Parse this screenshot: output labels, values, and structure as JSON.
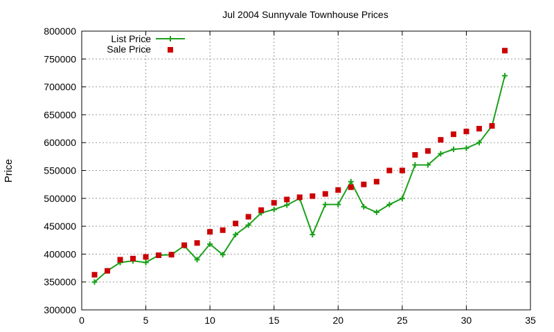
{
  "chart_data": {
    "type": "line",
    "title": "Jul 2004 Sunnyvale Townhouse Prices",
    "xlabel": "",
    "ylabel": "Price",
    "xlim": [
      0,
      35
    ],
    "ylim": [
      300000,
      800000
    ],
    "x_ticks": [
      0,
      5,
      10,
      15,
      20,
      25,
      30,
      35
    ],
    "y_ticks": [
      300000,
      350000,
      400000,
      450000,
      500000,
      550000,
      600000,
      650000,
      700000,
      750000,
      800000
    ],
    "grid": true,
    "legend_position": "top-left",
    "x": [
      1,
      2,
      3,
      4,
      5,
      6,
      7,
      8,
      9,
      10,
      11,
      12,
      13,
      14,
      15,
      16,
      17,
      18,
      19,
      20,
      21,
      22,
      23,
      24,
      25,
      26,
      27,
      28,
      29,
      30,
      31,
      32,
      33
    ],
    "series": [
      {
        "name": "List Price",
        "style": "linespoints",
        "marker": "plus",
        "color": "#1aa01a",
        "values": [
          350000,
          370000,
          385000,
          388000,
          385000,
          398000,
          399000,
          415000,
          390000,
          418000,
          399000,
          435000,
          452000,
          474000,
          480000,
          488000,
          500000,
          435000,
          489000,
          489000,
          530000,
          485000,
          475000,
          489000,
          500000,
          560000,
          560000,
          580000,
          588000,
          590000,
          600000,
          630000,
          720000
        ]
      },
      {
        "name": "Sale Price",
        "style": "points",
        "marker": "square",
        "color": "#cc0000",
        "values": [
          363000,
          370000,
          390000,
          392000,
          395000,
          398000,
          399000,
          416000,
          420000,
          440000,
          443000,
          455000,
          467000,
          479000,
          492000,
          498000,
          502000,
          504000,
          508000,
          515000,
          520000,
          525000,
          530000,
          550000,
          550000,
          578000,
          585000,
          605000,
          615000,
          620000,
          625000,
          630000,
          765000
        ]
      }
    ]
  }
}
